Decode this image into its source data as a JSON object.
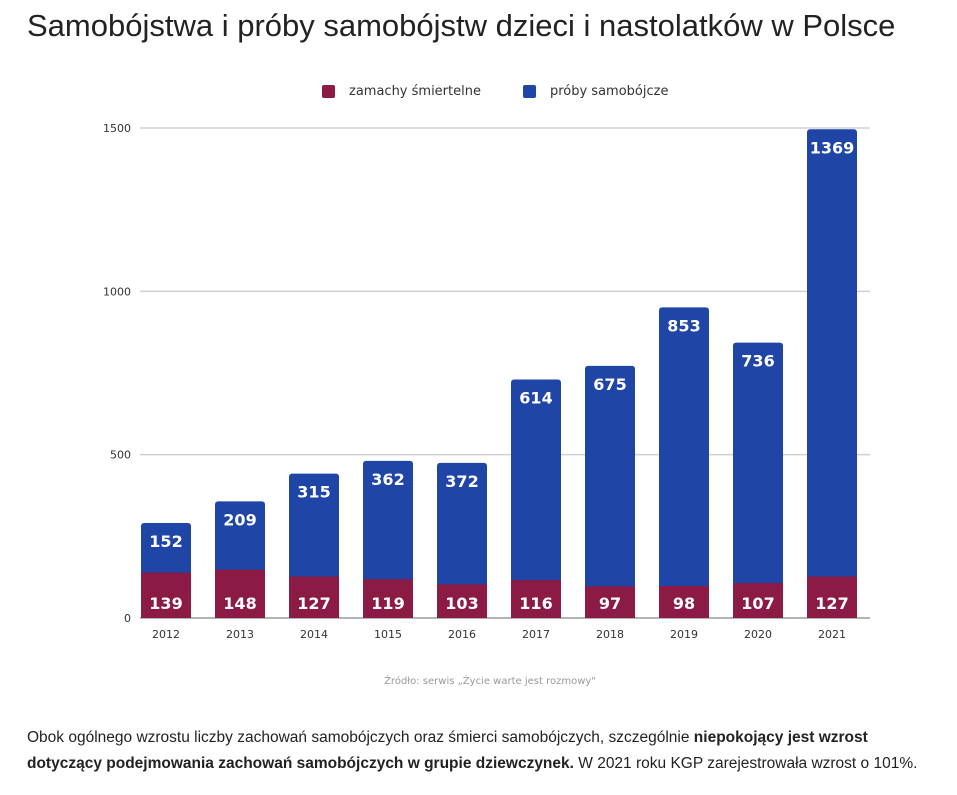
{
  "title": "Samobójstwa i próby samobójstw dzieci i nastolatków w Polsce",
  "colors": {
    "deaths": "#8b1a44",
    "attempts": "#1f45a6",
    "grid": "#d0d0d0"
  },
  "chart_data": {
    "type": "bar",
    "stacked": true,
    "categories": [
      "2012",
      "2013",
      "2014",
      "1015",
      "2016",
      "2017",
      "2018",
      "2019",
      "2020",
      "2021"
    ],
    "series": [
      {
        "name": "zamachy śmiertelne",
        "values": [
          139,
          148,
          127,
          119,
          103,
          116,
          97,
          98,
          107,
          127
        ]
      },
      {
        "name": "próby samobójcze",
        "values": [
          152,
          209,
          315,
          362,
          372,
          614,
          675,
          853,
          736,
          1369
        ]
      }
    ],
    "ylim": [
      0,
      1500
    ],
    "yticks": [
      0,
      500,
      1000,
      1500
    ],
    "grid": true,
    "legend": "top-center"
  },
  "source": "Źródło: serwis „Życie warte jest rozmowy\"",
  "note": {
    "part1": "Obok ogólnego wzrostu liczby zachowań samobójczych oraz śmierci samobójczych, szczególnie ",
    "bold": "niepokojący jest wzrost dotyczący podejmowania zachowań samobójczych w grupie dziewczynek.",
    "part2": " W 2021 roku KGP zarejestrowała wzrost o 101%."
  }
}
